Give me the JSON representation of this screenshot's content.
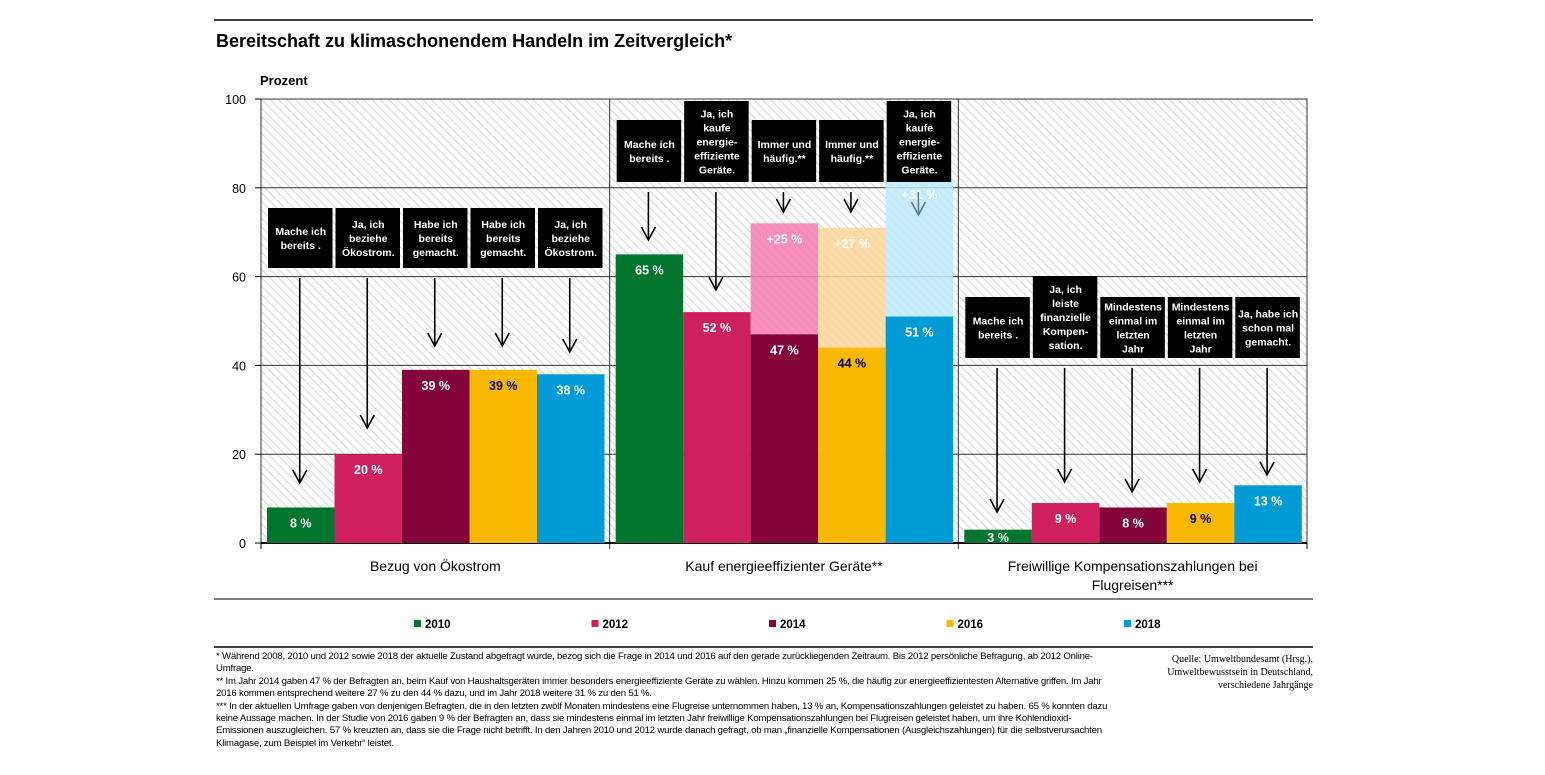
{
  "chart_data": {
    "type": "bar",
    "title": "Bereitschaft zu klimaschonendem Handeln im Zeitvergleich*",
    "ylabel": "Prozent",
    "ylim": [
      0,
      100
    ],
    "yticks": [
      0,
      20,
      40,
      60,
      80,
      100
    ],
    "grid": true,
    "legend_placement": "bottom",
    "categories": [
      "Bezug von Ökostrom",
      "Kauf energieeffizienter Geräte**",
      "Freiwillige Kompensationszahlungen bei Flugreisen***"
    ],
    "series": [
      {
        "name": "2010",
        "color": "#00752d",
        "light": "#5fb07d",
        "values": [
          8,
          65,
          3
        ],
        "labels": [
          "8 %",
          "65 %",
          "3 %"
        ],
        "additional": [
          null,
          null,
          null
        ],
        "additional_labels": [
          null,
          null,
          null
        ]
      },
      {
        "name": "2012",
        "color": "#ce1f5e",
        "light": "#f47bb0",
        "values": [
          20,
          52,
          9
        ],
        "labels": [
          "20 %",
          "52 %",
          "9 %"
        ],
        "additional": [
          null,
          null,
          null
        ],
        "additional_labels": [
          null,
          null,
          null
        ]
      },
      {
        "name": "2014",
        "color": "#83053c",
        "light": "#f47bb0",
        "values": [
          39,
          47,
          8
        ],
        "labels": [
          "39 %",
          "47 %",
          "8 %"
        ],
        "additional": [
          null,
          25,
          null
        ],
        "additional_labels": [
          null,
          "+25 %",
          null
        ]
      },
      {
        "name": "2016",
        "color": "#fab800",
        "light": "#fdd69a",
        "values": [
          39,
          44,
          9
        ],
        "labels": [
          "39 %",
          "44 %",
          "9 %"
        ],
        "additional": [
          null,
          27,
          null
        ],
        "additional_labels": [
          null,
          "+27 %",
          null
        ]
      },
      {
        "name": "2018",
        "color": "#009bd5",
        "light": "#bde9fa",
        "values": [
          38,
          51,
          13
        ],
        "labels": [
          "38 %",
          "51 %",
          "13 %"
        ],
        "additional": [
          null,
          31,
          null
        ],
        "additional_labels": [
          null,
          "+31 %",
          null
        ]
      }
    ],
    "callouts": [
      [
        "Mache ich|bereits .",
        "Ja, ich|beziehe|Ökostrom.",
        "Habe ich|bereits|gemacht.",
        "Habe ich|bereits|gemacht.",
        "Ja, ich|beziehe|Ökostrom."
      ],
      [
        "Mache ich|bereits .",
        "Ja, ich|kaufe|energie-|effiziente|Geräte.",
        "Immer und|häufig.**",
        "Immer und|häufig.**",
        "Ja, ich|kaufe|energie-|effiziente|Geräte."
      ],
      [
        "Mache ich|bereits .",
        "Ja, ich|leiste|finanzielle|Kompen-|sation.",
        "Mindestens|einmal im|letzten|Jahr",
        "Mindestens|einmal im|letzten|Jahr",
        "Ja, habe ich|schon mal|gemacht."
      ]
    ]
  },
  "footnotes": [
    "* Während  2008, 2010 und 2012 sowie 2018 der aktuelle Zustand abgefragt wurde, bezog sich die Frage in 2014 und 2016 auf den gerade zurückliegenden Zeitraum. Bis 2012 persönliche Befragung, ab 2012 Online-Umfrage.",
    "** Im Jahr 2014 gaben 47 % der Befragten an, beim Kauf von Haushaltsgeräten immer besonders energieeffiziente Geräte zu wählen. Hinzu kommen 25 %, die häufig zur energieeffizientesten Alternative griffen. Im Jahr 2016 kommen entsprechend weitere 27 % zu den 44 % dazu, und im Jahr 2018 weitere 31 % zu den 51 %.",
    "*** In der aktuellen Umfrage gaben von denjenigen Befragten, die in den letzten zwölf Monaten mindestens eine Flugreise unternommen haben, 13 % an, Kompensationszahlungen geleistet zu haben. 65 % konnten dazu keine Aussage machen. In der Studie von 2016 gaben 9 % der Befragten an, dass sie mindestens einmal im letzten Jahr freiwillige Kompensationszahlungen bei Flugreisen geleistet haben, um ihre Kohlendioxid-Emissionen auszugleichen. 57 % kreuzten an, dass sie die Frage nicht betrifft. In den Jahren 2010 und 2012 wurde danach gefragt, ob man „finanzielle Kompensationen (Ausgleichszahlungen) für die selbstverursachten Klimagase, zum Beispiel im Verkehr“ leistet."
  ],
  "source": [
    "Quelle: Umweltbundesamt (Hrsg.),",
    "Umweltbewusstsein in Deutschland,",
    "verschiedene Jahrgänge"
  ]
}
